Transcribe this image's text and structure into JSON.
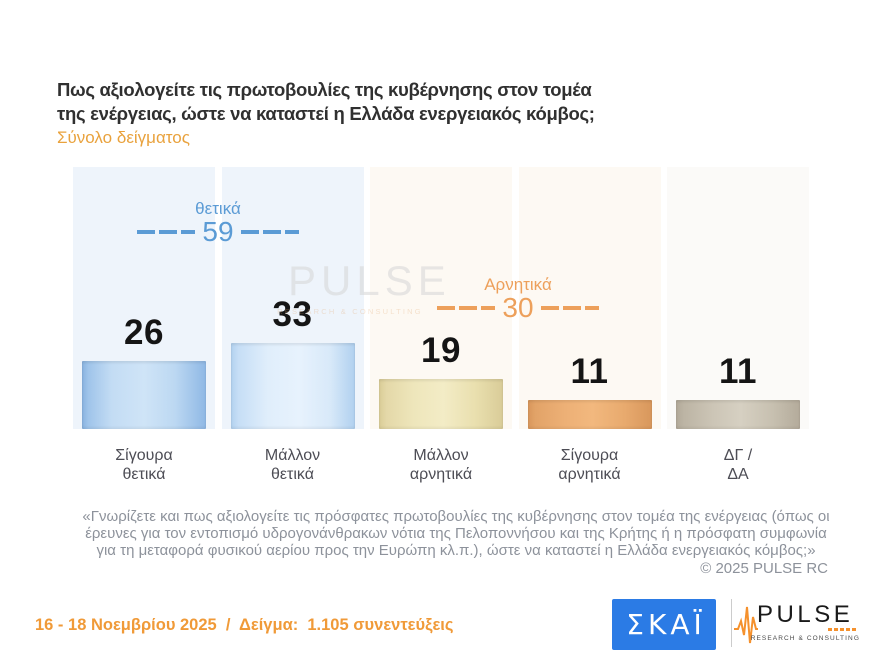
{
  "header": {
    "title_lines": [
      "Πως αξιολογείτε τις πρωτοβουλίες της κυβέρνησης στον τομέα",
      "της ενέργειας, ώστε να καταστεί η Ελλάδα ενεργειακός κόμβος;"
    ],
    "subtitle": "Σύνολο δείγματος"
  },
  "chart_data": {
    "type": "bar",
    "categories": [
      "Σίγουρα θετικά",
      "Μάλλον θετικά",
      "Μάλλον αρνητικά",
      "Σίγουρα αρνητικά",
      "ΔΓ / ΔΑ"
    ],
    "category_lines": [
      [
        "Σίγουρα",
        "θετικά"
      ],
      [
        "Μάλλον",
        "θετικά"
      ],
      [
        "Μάλλον",
        "αρνητικά"
      ],
      [
        "Σίγουρα",
        "αρνητικά"
      ],
      [
        "ΔΓ /",
        "ΔΑ"
      ]
    ],
    "values": [
      26,
      33,
      19,
      11,
      11
    ],
    "ylim": [
      0,
      100
    ],
    "groups": [
      {
        "label": "θετικά",
        "value": 59,
        "color": "#5b9bd5"
      },
      {
        "label": "Αρνητικά",
        "value": 30,
        "color": "#eda05b"
      }
    ],
    "bar_colors": [
      "#9dc3ea",
      "#c7dff7",
      "#ece2b0",
      "#eaa96c",
      "#c5beae"
    ],
    "column_bg": [
      "#eef4fb",
      "#eef4fb",
      "#fdf9f3",
      "#fdf9f3",
      "#fbfaf8"
    ]
  },
  "watermark": {
    "name": "PULSE",
    "tagline": "RESEARCH & CONSULTING"
  },
  "footnote": {
    "lines": [
      "«Γνωρίζετε και πως αξιολογείτε τις πρόσφατες πρωτοβουλίες της κυβέρνησης στον τομέα της ενέργειας (όπως οι",
      "έρευνες για τον εντοπισμό υδρογονάνθρακων νότια της Πελοποννήσου και της Κρήτης ή η πρόσφατη συμφωνία",
      "για τη μεταφορά φυσικού αερίου προς την Ευρώπη κλ.π.), ώστε να καταστεί η Ελλάδα ενεργειακός κόμβος;»"
    ],
    "copyright": "© 2025 PULSE RC"
  },
  "footer": {
    "fieldwork": "16 - 18 Νοεμβρίου 2025  /  Δείγμα:  1.105 συνεντεύξεις"
  },
  "logos": {
    "skai": "ΣΚΑΪ",
    "pulse_name": "PULSE",
    "pulse_tagline": "RESEARCH & CONSULTING"
  }
}
